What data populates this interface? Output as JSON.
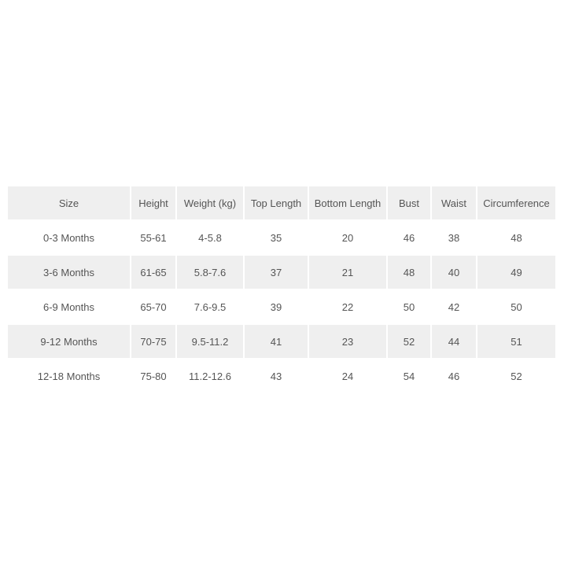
{
  "table": {
    "header": [
      "Size",
      "Height",
      "Weight (kg)",
      "Top Length",
      "Bottom Length",
      "Bust",
      "Waist",
      "Circumference"
    ],
    "rows": [
      [
        "0-3 Months",
        "55-61",
        "4-5.8",
        "35",
        "20",
        "46",
        "38",
        "48"
      ],
      [
        "3-6 Months",
        "61-65",
        "5.8-7.6",
        "37",
        "21",
        "48",
        "40",
        "49"
      ],
      [
        "6-9 Months",
        "65-70",
        "7.6-9.5",
        "39",
        "22",
        "50",
        "42",
        "50"
      ],
      [
        "9-12 Months",
        "70-75",
        "9.5-11.2",
        "41",
        "23",
        "52",
        "44",
        "51"
      ],
      [
        "12-18 Months",
        "75-80",
        "11.2-12.6",
        "43",
        "24",
        "54",
        "46",
        "52"
      ]
    ]
  }
}
